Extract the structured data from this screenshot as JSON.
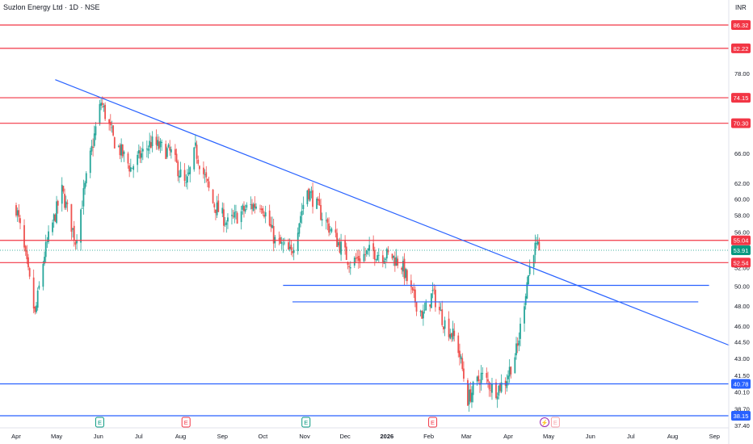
{
  "header": {
    "title": "Suzlon Energy Ltd · 1D · NSE",
    "currency": "INR"
  },
  "colors": {
    "up": "#26a69a",
    "up_fill": "#26a69a",
    "down": "#ef5350",
    "resistance": "#f23645",
    "support": "#2962ff",
    "trendline": "#2962ff",
    "last_price": "#089981",
    "axis_text": "#131722"
  },
  "chart_data": {
    "type": "candlestick",
    "title": "Suzlon Energy Ltd · 1D · NSE",
    "y_scale": "log",
    "ylim": [
      37.4,
      88.5
    ],
    "y_tick_labels": [
      "78.00",
      "66.00",
      "62.00",
      "60.00",
      "58.00",
      "56.00",
      "52.00",
      "50.00",
      "48.00",
      "46.00",
      "44.50",
      "43.00",
      "41.50",
      "40.10",
      "38.70",
      "37.40"
    ],
    "x_tick_labels": [
      "Apr",
      "May",
      "Jun",
      "Jul",
      "Aug",
      "Sep",
      "Oct",
      "Nov",
      "Dec",
      "2026",
      "Feb",
      "Mar",
      "Apr",
      "May",
      "Jun",
      "Jul",
      "Aug",
      "Sep"
    ],
    "price_levels": [
      {
        "value": 86.32,
        "label": "86.32",
        "kind": "resistance"
      },
      {
        "value": 82.22,
        "label": "82.22",
        "kind": "resistance"
      },
      {
        "value": 74.15,
        "label": "74.15",
        "kind": "resistance"
      },
      {
        "value": 70.3,
        "label": "70.30",
        "kind": "resistance"
      },
      {
        "value": 55.04,
        "label": "55.04",
        "kind": "resistance"
      },
      {
        "value": 52.54,
        "label": "52.54",
        "kind": "resistance"
      },
      {
        "value": 40.78,
        "label": "40.78",
        "kind": "support"
      },
      {
        "value": 38.15,
        "label": "38.15",
        "kind": "support"
      }
    ],
    "last_price": {
      "value": 53.91,
      "label": "53.91"
    },
    "short_support_lines": [
      {
        "value": 50.1,
        "from": "2025-10-16",
        "to": "2026-08-28"
      },
      {
        "value": 48.4,
        "from": "2025-10-23",
        "to": "2026-08-20"
      }
    ],
    "trendline": {
      "from": {
        "date": "2025-04-30",
        "value": 77.0
      },
      "to": {
        "date": "2026-09-12",
        "value": 44.2
      }
    },
    "events": [
      {
        "date": "2025-06-02",
        "symbol": "E"
      },
      {
        "date": "2025-08-05",
        "symbol": "E"
      },
      {
        "date": "2025-11-02",
        "symbol": "E"
      },
      {
        "date": "2026-02-04",
        "symbol": "E"
      },
      {
        "date": "2026-04-28",
        "symbol": "⚡"
      },
      {
        "date": "2026-05-06",
        "symbol": "E"
      }
    ],
    "candles_keypoints": [
      {
        "date": "2025-04-01",
        "value": 59.0
      },
      {
        "date": "2025-04-15",
        "value": 47.0
      },
      {
        "date": "2025-04-22",
        "value": 53.5
      },
      {
        "date": "2025-05-05",
        "value": 61.0
      },
      {
        "date": "2025-05-15",
        "value": 55.0
      },
      {
        "date": "2025-05-22",
        "value": 61.5
      },
      {
        "date": "2025-06-03",
        "value": 73.5
      },
      {
        "date": "2025-06-12",
        "value": 68.0
      },
      {
        "date": "2025-06-25",
        "value": 64.0
      },
      {
        "date": "2025-07-10",
        "value": 67.5
      },
      {
        "date": "2025-07-25",
        "value": 66.0
      },
      {
        "date": "2025-08-05",
        "value": 61.5
      },
      {
        "date": "2025-08-12",
        "value": 66.5
      },
      {
        "date": "2025-08-25",
        "value": 59.5
      },
      {
        "date": "2025-09-05",
        "value": 57.0
      },
      {
        "date": "2025-09-20",
        "value": 59.0
      },
      {
        "date": "2025-09-30",
        "value": 59.5
      },
      {
        "date": "2025-10-10",
        "value": 55.0
      },
      {
        "date": "2025-10-22",
        "value": 53.5
      },
      {
        "date": "2025-11-03",
        "value": 61.3
      },
      {
        "date": "2025-11-12",
        "value": 58.5
      },
      {
        "date": "2025-11-25",
        "value": 55.0
      },
      {
        "date": "2025-12-05",
        "value": 52.5
      },
      {
        "date": "2025-12-20",
        "value": 53.8
      },
      {
        "date": "2026-01-05",
        "value": 53.2
      },
      {
        "date": "2026-01-12",
        "value": 52.3
      },
      {
        "date": "2026-01-20",
        "value": 49.0
      },
      {
        "date": "2026-01-28",
        "value": 47.0
      },
      {
        "date": "2026-02-04",
        "value": 49.3
      },
      {
        "date": "2026-02-12",
        "value": 46.5
      },
      {
        "date": "2026-02-22",
        "value": 44.5
      },
      {
        "date": "2026-03-02",
        "value": 39.5
      },
      {
        "date": "2026-03-12",
        "value": 41.5
      },
      {
        "date": "2026-03-22",
        "value": 40.2
      },
      {
        "date": "2026-03-30",
        "value": 41.0
      },
      {
        "date": "2026-04-08",
        "value": 44.0
      },
      {
        "date": "2026-04-15",
        "value": 50.5
      },
      {
        "date": "2026-04-20",
        "value": 54.2
      },
      {
        "date": "2026-04-24",
        "value": 53.91
      }
    ]
  }
}
